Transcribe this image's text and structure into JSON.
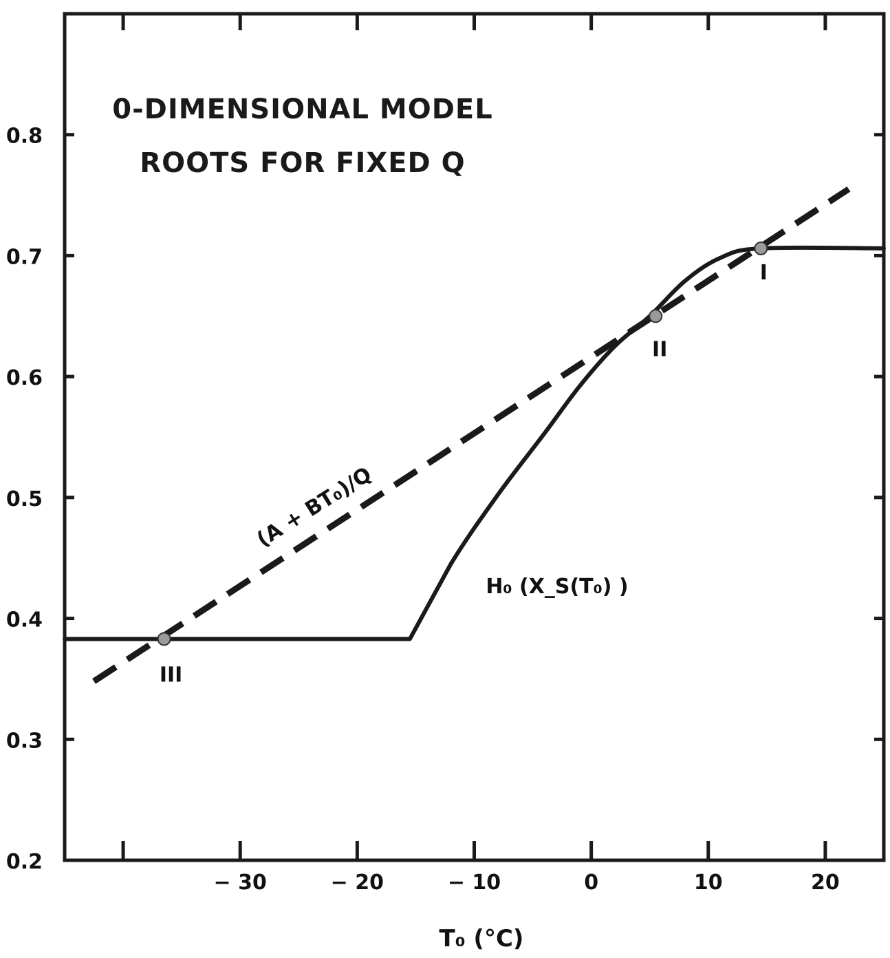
{
  "chart_data": {
    "type": "line",
    "title": [
      "0-DIMENSIONAL MODEL",
      "ROOTS FOR FIXED Q"
    ],
    "xlabel": "T₀ (°C)",
    "ylabel": "",
    "xlim": [
      -45,
      25
    ],
    "ylim": [
      0.2,
      0.9
    ],
    "x_ticks": [
      -40,
      -30,
      -20,
      -10,
      0,
      10,
      20
    ],
    "x_tick_labels": [
      {
        "value": -30,
        "label": "− 30"
      },
      {
        "value": -20,
        "label": "− 20"
      },
      {
        "value": -10,
        "label": "− 10"
      },
      {
        "value": 0,
        "label": "0"
      },
      {
        "value": 10,
        "label": "10"
      },
      {
        "value": 20,
        "label": "20"
      }
    ],
    "y_ticks": [
      0.2,
      0.3,
      0.4,
      0.5,
      0.6,
      0.7,
      0.8
    ],
    "y_tick_labels": [
      "0.2",
      "0.3",
      "0.4",
      "0.5",
      "0.6",
      "0.7",
      "0.8"
    ],
    "grid": false,
    "series": [
      {
        "name": "H₀ (X_S(T₀) )",
        "style": "solid",
        "color": "#1a1a1a",
        "x": [
          -45,
          -15.5,
          -12,
          -8,
          -4,
          -1,
          2,
          5,
          8,
          11,
          14.5,
          25
        ],
        "y": [
          0.383,
          0.383,
          0.445,
          0.502,
          0.553,
          0.592,
          0.625,
          0.65,
          0.679,
          0.698,
          0.706,
          0.706
        ]
      },
      {
        "name": "(A + BT₀)/Q",
        "style": "dashed",
        "color": "#1a1a1a",
        "x": [
          -42.5,
          22
        ],
        "y": [
          0.348,
          0.755
        ]
      }
    ],
    "roots": [
      {
        "label": "I",
        "x": 14.5,
        "y": 0.706
      },
      {
        "label": "II",
        "x": 5.5,
        "y": 0.65
      },
      {
        "label": "III",
        "x": -36.5,
        "y": 0.383
      }
    ],
    "annotations": [
      {
        "text": "(A + BT₀)/Q"
      },
      {
        "text": "H₀ (X_S(T₀) )"
      }
    ]
  }
}
